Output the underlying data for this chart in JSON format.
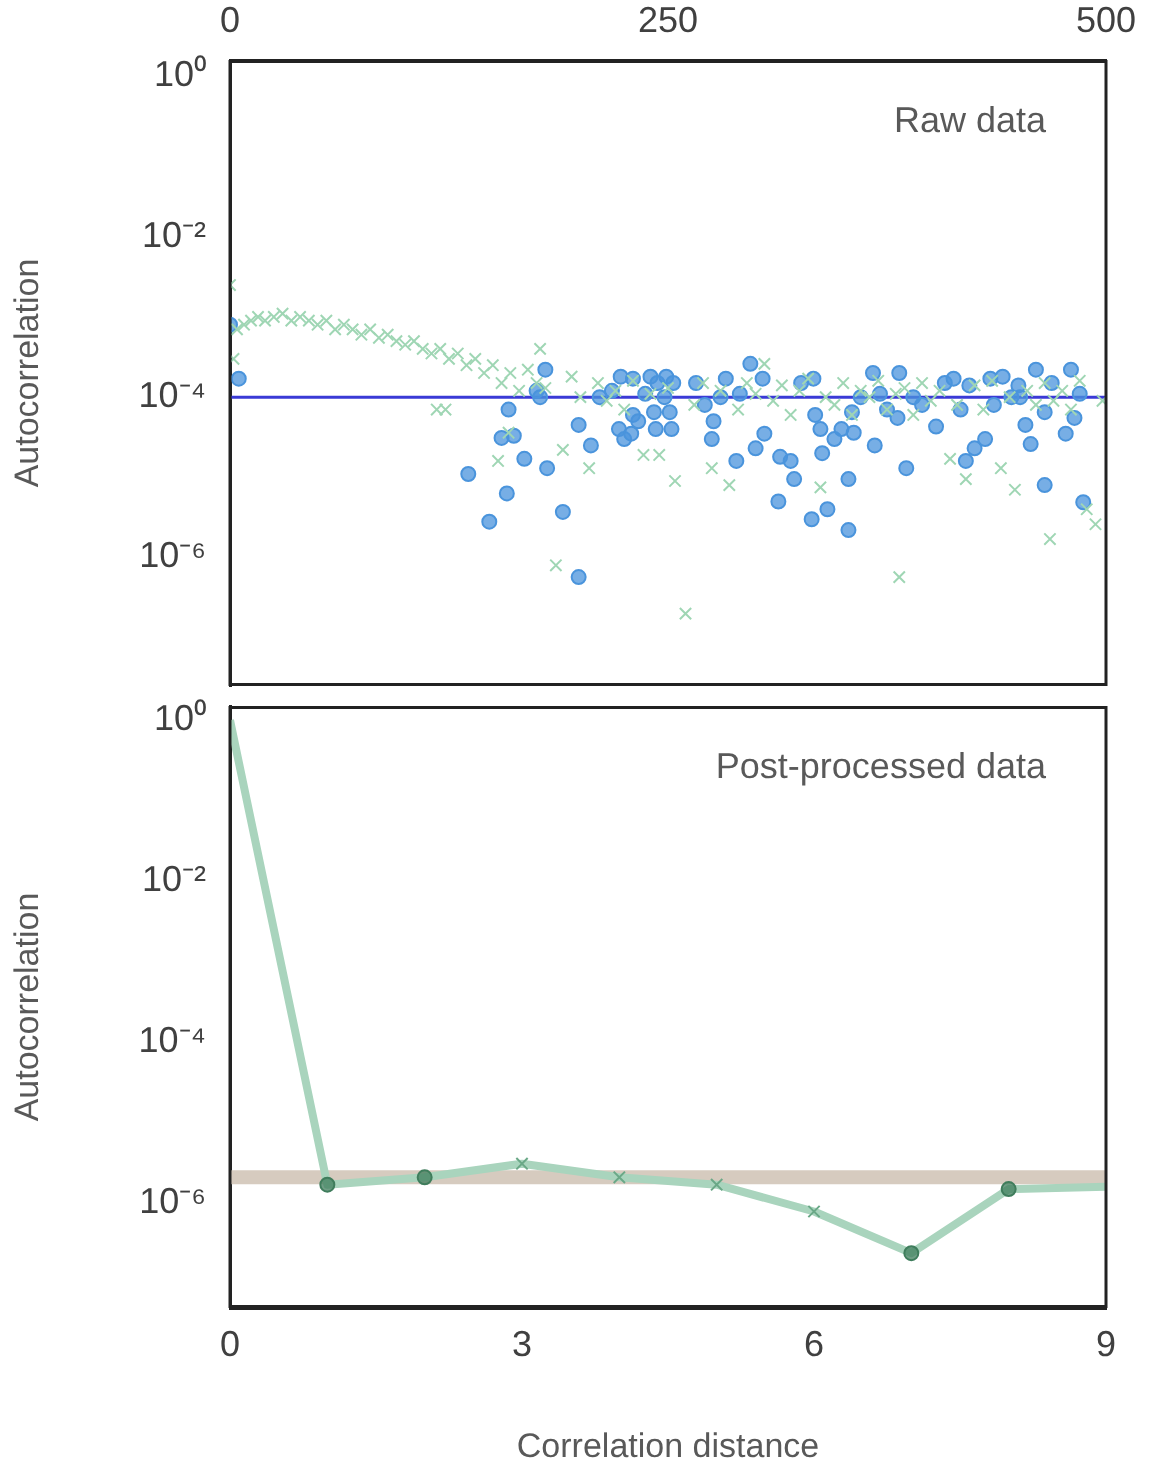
{
  "chart_data": [
    {
      "type": "scatter",
      "ylabel": "Autocorrelation",
      "annotations": [
        "Raw data"
      ],
      "log": "y",
      "grid": false,
      "legend": false,
      "xlim": [
        0,
        500
      ],
      "xticks": [
        0,
        250,
        500
      ],
      "ylim": [
        2.5e-08,
        1.6
      ],
      "yticks": [
        {
          "value": 1,
          "label": "10⁰"
        },
        {
          "value": 0.01,
          "label": "10⁻²"
        },
        {
          "value": 0.0001,
          "label": "10⁻⁴"
        },
        {
          "value": 1e-06,
          "label": "10⁻⁶"
        }
      ],
      "ref_lines": [
        {
          "axis": "y",
          "value": 0.0001,
          "color": "#3a3ad6"
        }
      ],
      "series": [
        {
          "marker": "cross",
          "color": "#9fd6b4",
          "x": [
            0,
            2,
            4,
            8,
            12,
            16,
            20,
            25,
            30,
            35,
            40,
            45,
            50,
            55,
            60,
            65,
            70,
            75,
            80,
            85,
            90,
            95,
            100,
            105,
            110,
            115,
            118,
            120,
            123,
            125,
            130,
            135,
            140,
            145,
            150,
            153,
            155,
            159,
            160,
            165,
            170,
            175,
            177,
            180,
            186,
            190,
            195,
            200,
            205,
            210,
            215,
            220,
            225,
            230,
            236,
            240,
            245,
            250,
            254,
            260,
            265,
            270,
            275,
            280,
            285,
            290,
            295,
            300,
            305,
            310,
            315,
            320,
            325,
            330,
            337,
            340,
            345,
            350,
            355,
            360,
            365,
            370,
            375,
            380,
            382,
            385,
            390,
            395,
            400,
            405,
            411,
            415,
            420,
            425,
            430,
            435,
            440,
            445,
            448,
            455,
            460,
            465,
            468,
            470,
            475,
            480,
            485,
            489,
            494,
            498
          ],
          "values": [
            0.0025,
            0.0003,
            0.0007,
            0.0008,
            0.0009,
            0.001,
            0.0009,
            0.001,
            0.0011,
            0.0009,
            0.001,
            0.0009,
            0.0008,
            0.0009,
            0.0007,
            0.0008,
            0.0007,
            0.0006,
            0.0007,
            0.00055,
            0.0006,
            0.0005,
            0.00045,
            0.0005,
            0.0004,
            0.00035,
            7e-05,
            0.0004,
            7e-05,
            0.0003,
            0.00035,
            0.00025,
            0.0003,
            0.0002,
            0.00025,
            1.6e-05,
            0.00015,
            3.6e-05,
            0.0002,
            0.00012,
            0.00022,
            0.00015,
            0.0004,
            0.00013,
            8e-07,
            2.2e-05,
            0.00018,
            0.0001,
            1.3e-05,
            0.00015,
            9e-05,
            0.00012,
            7e-05,
            0.00016,
            1.9e-05,
            0.00011,
            1.9e-05,
            0.00013,
            9e-06,
            2e-07,
            8e-05,
            0.00015,
            1.3e-05,
            0.00012,
            8e-06,
            7e-05,
            0.00015,
            0.00011,
            0.00026,
            9e-05,
            0.00014,
            6e-05,
            0.00012,
            0.00017,
            7.5e-06,
            0.0001,
            8e-05,
            0.00015,
            6e-05,
            0.00012,
            0.0001,
            0.00016,
            7e-05,
            0.00011,
            5.7e-07,
            0.00013,
            6e-05,
            0.00015,
            9e-05,
            0.00012,
            1.7e-05,
            8e-05,
            9.5e-06,
            0.00014,
            7e-05,
            0.00016,
            1.3e-05,
            0.0001,
            7e-06,
            0.00012,
            8e-05,
            0.00015,
            1.7e-06,
            9e-05,
            0.00012,
            7e-05,
            0.00016,
            4e-06,
            2.6e-06,
            9e-05
          ]
        },
        {
          "marker": "circle",
          "color": "#4a94dc",
          "x": [
            0,
            5,
            136,
            148,
            155,
            158,
            159,
            162,
            168,
            175,
            177,
            180,
            181,
            190,
            199,
            199,
            206,
            211,
            218,
            222,
            223,
            225,
            229,
            230,
            230,
            233,
            237,
            240,
            242,
            243,
            244,
            248,
            249,
            251,
            252,
            253,
            266,
            271,
            275,
            276,
            280,
            283,
            289,
            291,
            297,
            300,
            304,
            305,
            313,
            314,
            320,
            322,
            326,
            332,
            333,
            334,
            337,
            338,
            341,
            345,
            349,
            353,
            353,
            355,
            356,
            360,
            367,
            368,
            371,
            375,
            381,
            382,
            386,
            390,
            395,
            403,
            408,
            413,
            417,
            420,
            422,
            425,
            431,
            434,
            436,
            441,
            446,
            450,
            451,
            454,
            457,
            460,
            465,
            465,
            469,
            477,
            480,
            482,
            485,
            487
          ],
          "values": [
            0.0008,
            0.00017,
            1.1e-05,
            2.8e-06,
            3.1e-05,
            6.3e-06,
            7e-05,
            3.3e-05,
            1.7e-05,
            0.00012,
            0.0001,
            0.00022,
            1.3e-05,
            3.7e-06,
            4.5e-05,
            5.7e-07,
            2.5e-05,
            0.0001,
            0.00012,
            4e-05,
            0.00018,
            3e-05,
            3.5e-05,
            6e-05,
            0.00017,
            5e-05,
            0.00011,
            0.00018,
            6.5e-05,
            4e-05,
            0.00015,
            0.0001,
            0.00018,
            6.5e-05,
            4e-05,
            0.00015,
            0.00015,
            8e-05,
            3e-05,
            5e-05,
            0.0001,
            0.00017,
            1.6e-05,
            0.00011,
            0.00026,
            2.3e-05,
            0.00017,
            3.5e-05,
            5e-06,
            1.8e-05,
            1.6e-05,
            9.5e-06,
            0.00015,
            3e-06,
            0.00017,
            6e-05,
            4e-05,
            2e-05,
            4e-06,
            3e-05,
            4e-05,
            2.2e-06,
            9.5e-06,
            6.5e-05,
            3.6e-05,
            0.0001,
            0.0002,
            2.5e-05,
            0.00011,
            7e-05,
            5.5e-05,
            0.0002,
            1.3e-05,
            0.0001,
            8e-05,
            4.3e-05,
            0.00015,
            0.00017,
            7e-05,
            1.6e-05,
            0.00014,
            2.3e-05,
            3e-05,
            0.00017,
            8e-05,
            0.00018,
            0.0001,
            0.00014,
            0.0001,
            4.5e-05,
            2.6e-05,
            0.00022,
            6.5e-05,
            8e-06,
            0.00015,
            3.5e-05,
            0.00022,
            5.5e-05,
            0.00011,
            4.9e-06
          ]
        }
      ]
    },
    {
      "type": "line",
      "xlabel": "Correlation distance",
      "ylabel": "Autocorrelation",
      "annotations": [
        "Post-processed data"
      ],
      "log": "y",
      "grid": false,
      "legend": false,
      "x": [
        0,
        1,
        2,
        3,
        4,
        5,
        6,
        7,
        8,
        9
      ],
      "xlim": [
        0,
        9
      ],
      "xticks": [
        0,
        3,
        6,
        9
      ],
      "ylim": [
        5e-08,
        1.5
      ],
      "yticks": [
        {
          "value": 1,
          "label": "10⁰"
        },
        {
          "value": 0.01,
          "label": "10⁻²"
        },
        {
          "value": 0.0001,
          "label": "10⁻⁴"
        },
        {
          "value": 1e-06,
          "label": "10⁻⁶"
        }
      ],
      "ref_lines": [
        {
          "axis": "y",
          "value": 2.1e-06,
          "color": "#d6cbbf"
        }
      ],
      "series": [
        {
          "marker": "none",
          "color": "#a9d4bd",
          "values": [
            1,
            1.7e-06,
            2.1e-06,
            3.1e-06,
            2.1e-06,
            1.7e-06,
            7.9e-07,
            2.4e-07,
            1.5e-06,
            1.6e-06
          ]
        },
        {
          "type": "scatter",
          "marker": "circle",
          "color": "#3f7d5c",
          "x": [
            1,
            2,
            7,
            8
          ],
          "values": [
            1.7e-06,
            2.1e-06,
            2.4e-07,
            1.5e-06
          ]
        },
        {
          "type": "scatter",
          "marker": "cross",
          "color": "#6aa887",
          "x": [
            3,
            4,
            5,
            6
          ],
          "values": [
            3.1e-06,
            2.1e-06,
            1.7e-06,
            7.9e-07
          ]
        }
      ]
    }
  ]
}
